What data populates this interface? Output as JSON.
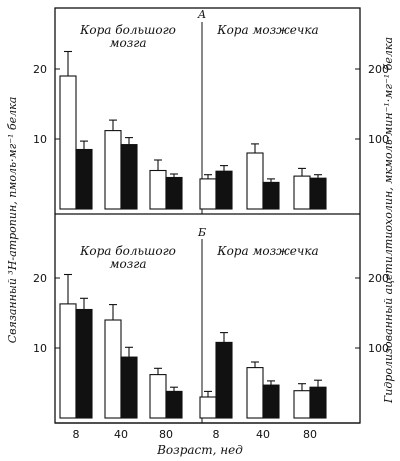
{
  "chart_data": {
    "type": "bar",
    "xlabel": "Возраст, нед",
    "ylabel_left": "Связанный ³H-атропин, пмоль·мг⁻¹ белка",
    "ylabel_right": "Гидролизованный ацетилтиохолин, мкмоль·мин⁻¹·мг⁻¹ белка",
    "x_ticks": [
      "8",
      "40",
      "80",
      "8",
      "40",
      "80"
    ],
    "left_ticks": [
      "10",
      "20"
    ],
    "right_ticks": [
      "100",
      "200"
    ],
    "left_ylim": [
      0,
      25
    ],
    "right_ylim": [
      0,
      250
    ],
    "panels": [
      {
        "label": "А",
        "groups": [
          {
            "title_lines": [
              "Кора большого",
              "мозга"
            ],
            "categories": [
              "8",
              "40",
              "80"
            ],
            "series": [
              {
                "fill": "open",
                "axis": "left",
                "values": [
                  19.0,
                  11.2,
                  5.5
                ],
                "errors": [
                  3.5,
                  1.5,
                  1.5
                ]
              },
              {
                "fill": "filled",
                "axis": "right",
                "values": [
                  85,
                  92,
                  45
                ],
                "errors": [
                  12,
                  10,
                  5
                ]
              }
            ]
          },
          {
            "title_lines": [
              "Кора мозжечка"
            ],
            "categories": [
              "8",
              "40",
              "80"
            ],
            "series": [
              {
                "fill": "open",
                "axis": "left",
                "values": [
                  4.3,
                  8.0,
                  4.7
                ],
                "errors": [
                  0.6,
                  1.3,
                  1.1
                ]
              },
              {
                "fill": "filled",
                "axis": "right",
                "values": [
                  54,
                  38,
                  44
                ],
                "errors": [
                  8,
                  5,
                  5
                ]
              }
            ]
          }
        ]
      },
      {
        "label": "Б",
        "groups": [
          {
            "title_lines": [
              "Кора большого",
              "мозга"
            ],
            "categories": [
              "8",
              "40",
              "80"
            ],
            "series": [
              {
                "fill": "open",
                "axis": "left",
                "values": [
                  16.3,
                  14.0,
                  6.2
                ],
                "errors": [
                  4.2,
                  2.2,
                  0.9
                ]
              },
              {
                "fill": "filled",
                "axis": "right",
                "values": [
                  155,
                  87,
                  38
                ],
                "errors": [
                  16,
                  14,
                  6
                ]
              }
            ]
          },
          {
            "title_lines": [
              "Кора мозжечка"
            ],
            "categories": [
              "8",
              "40",
              "80"
            ],
            "series": [
              {
                "fill": "open",
                "axis": "left",
                "values": [
                  3.0,
                  7.2,
                  3.9
                ],
                "errors": [
                  0.8,
                  0.8,
                  1.0
                ]
              },
              {
                "fill": "filled",
                "axis": "right",
                "values": [
                  108,
                  47,
                  44
                ],
                "errors": [
                  14,
                  6,
                  10
                ]
              }
            ]
          }
        ]
      }
    ]
  }
}
